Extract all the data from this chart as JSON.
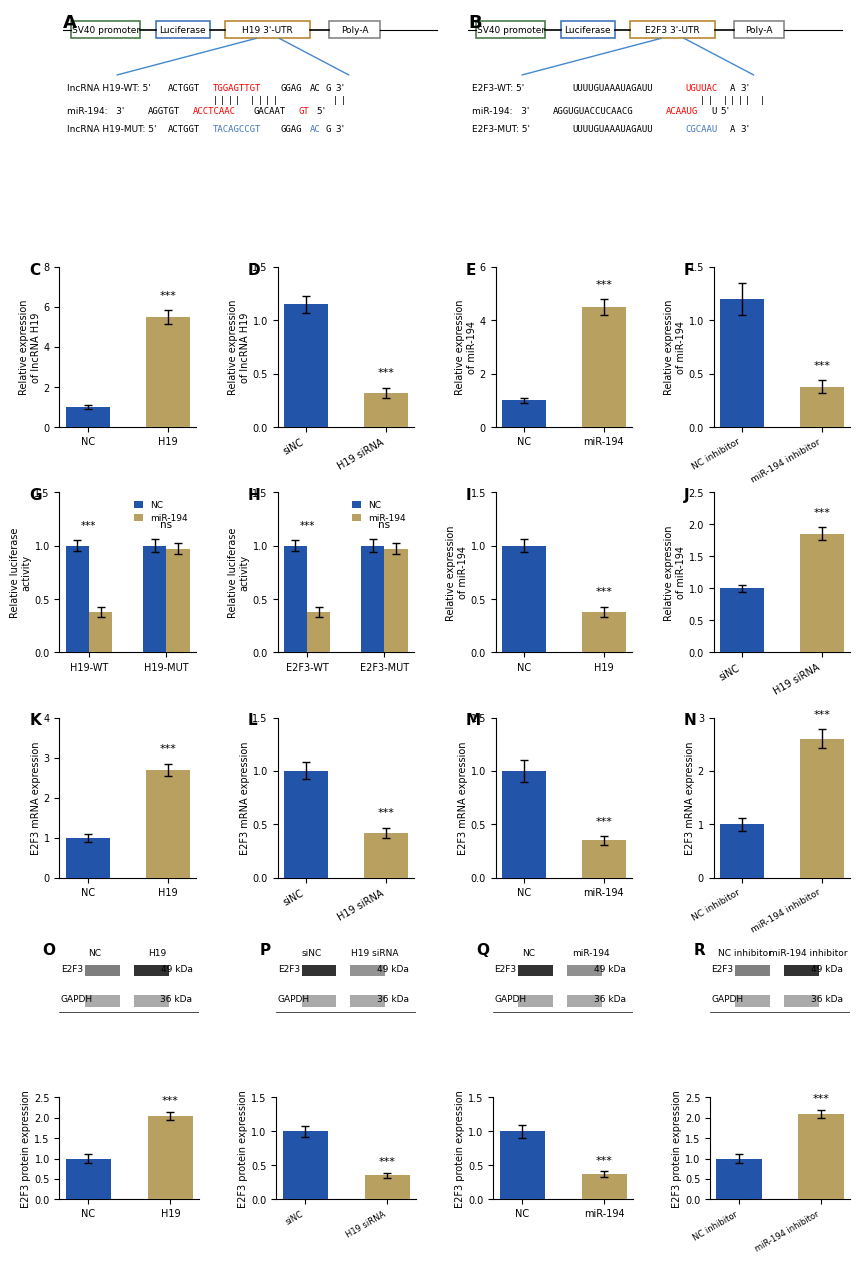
{
  "blue_color": "#2255aa",
  "tan_color": "#b8a060",
  "bar_width": 0.55,
  "panels": {
    "C": {
      "categories": [
        "NC",
        "H19"
      ],
      "values": [
        1.0,
        5.5
      ],
      "errors": [
        0.1,
        0.35
      ],
      "ylabel": "Relative expression\nof lncRNA H19",
      "ylim": [
        0,
        8
      ],
      "yticks": [
        0,
        2,
        4,
        6,
        8
      ],
      "sig": "***",
      "sig_on": 1
    },
    "D": {
      "categories": [
        "siNC",
        "H19 siRNA"
      ],
      "values": [
        1.15,
        0.32
      ],
      "errors": [
        0.08,
        0.05
      ],
      "ylabel": "Relative expression\nof lncRNA H19",
      "ylim": [
        0,
        1.5
      ],
      "yticks": [
        0.0,
        0.5,
        1.0,
        1.5
      ],
      "sig": "***",
      "sig_on": 1
    },
    "E": {
      "categories": [
        "NC",
        "miR-194"
      ],
      "values": [
        1.0,
        4.5
      ],
      "errors": [
        0.1,
        0.3
      ],
      "ylabel": "Relative expression\nof miR-194",
      "ylim": [
        0,
        6
      ],
      "yticks": [
        0,
        2,
        4,
        6
      ],
      "sig": "***",
      "sig_on": 1
    },
    "F": {
      "categories": [
        "NC inhibitor",
        "miR-194 inhibitor"
      ],
      "values": [
        1.2,
        0.38
      ],
      "errors": [
        0.15,
        0.06
      ],
      "ylabel": "Relative expression\nof miR-194",
      "ylim": [
        0,
        1.5
      ],
      "yticks": [
        0.0,
        0.5,
        1.0,
        1.5
      ],
      "sig": "***",
      "sig_on": 1
    },
    "G": {
      "categories": [
        "H19-WT",
        "H19-MUT"
      ],
      "values_nc": [
        1.0,
        1.0
      ],
      "values_mir": [
        0.38,
        0.97
      ],
      "errors_nc": [
        0.05,
        0.06
      ],
      "errors_mir": [
        0.05,
        0.05
      ],
      "ylabel": "Relative luciferase\nactivity",
      "ylim": [
        0,
        1.5
      ],
      "yticks": [
        0.0,
        0.5,
        1.0,
        1.5
      ],
      "sig": [
        "***",
        "ns"
      ]
    },
    "H": {
      "categories": [
        "E2F3-WT",
        "E2F3-MUT"
      ],
      "values_nc": [
        1.0,
        1.0
      ],
      "values_mir": [
        0.38,
        0.97
      ],
      "errors_nc": [
        0.05,
        0.06
      ],
      "errors_mir": [
        0.05,
        0.05
      ],
      "ylabel": "Relative luciferase\nactivity",
      "ylim": [
        0,
        1.5
      ],
      "yticks": [
        0.0,
        0.5,
        1.0,
        1.5
      ],
      "sig": [
        "***",
        "ns"
      ]
    },
    "I": {
      "categories": [
        "NC",
        "H19"
      ],
      "values": [
        1.0,
        0.38
      ],
      "errors": [
        0.06,
        0.05
      ],
      "ylabel": "Relative expression\nof miR-194",
      "ylim": [
        0,
        1.5
      ],
      "yticks": [
        0.0,
        0.5,
        1.0,
        1.5
      ],
      "sig": "***",
      "sig_on": 1
    },
    "J": {
      "categories": [
        "siNC",
        "H19 siRNA"
      ],
      "values": [
        1.0,
        1.85
      ],
      "errors": [
        0.06,
        0.1
      ],
      "ylabel": "Relative expression\nof miR-194",
      "ylim": [
        0,
        2.5
      ],
      "yticks": [
        0.0,
        0.5,
        1.0,
        1.5,
        2.0,
        2.5
      ],
      "sig": "***",
      "sig_on": 1
    },
    "K": {
      "categories": [
        "NC",
        "H19"
      ],
      "values": [
        1.0,
        2.7
      ],
      "errors": [
        0.1,
        0.15
      ],
      "ylabel": "E2F3 mRNA expression",
      "ylim": [
        0,
        4
      ],
      "yticks": [
        0,
        1,
        2,
        3,
        4
      ],
      "sig": "***",
      "sig_on": 1
    },
    "L": {
      "categories": [
        "siNC",
        "H19 siRNA"
      ],
      "values": [
        1.0,
        0.42
      ],
      "errors": [
        0.08,
        0.05
      ],
      "ylabel": "E2F3 mRNA expression",
      "ylim": [
        0,
        1.5
      ],
      "yticks": [
        0.0,
        0.5,
        1.0,
        1.5
      ],
      "sig": "***",
      "sig_on": 1
    },
    "M": {
      "categories": [
        "NC",
        "miR-194"
      ],
      "values": [
        1.0,
        0.35
      ],
      "errors": [
        0.1,
        0.04
      ],
      "ylabel": "E2F3 mRNA expression",
      "ylim": [
        0,
        1.5
      ],
      "yticks": [
        0.0,
        0.5,
        1.0,
        1.5
      ],
      "sig": "***",
      "sig_on": 1
    },
    "N": {
      "categories": [
        "NC inhibitor",
        "miR-194 inhibitor"
      ],
      "values": [
        1.0,
        2.6
      ],
      "errors": [
        0.12,
        0.18
      ],
      "ylabel": "E2F3 mRNA expression",
      "ylim": [
        0,
        3
      ],
      "yticks": [
        0,
        1,
        2,
        3
      ],
      "sig": "***",
      "sig_on": 1
    },
    "O_bar": {
      "categories": [
        "NC",
        "H19"
      ],
      "values": [
        1.0,
        2.05
      ],
      "errors": [
        0.12,
        0.1
      ],
      "ylabel": "E2F3 protein expression",
      "ylim": [
        0,
        2.5
      ],
      "yticks": [
        0.0,
        0.5,
        1.0,
        1.5,
        2.0,
        2.5
      ],
      "sig": "***",
      "sig_on": 1
    },
    "P_bar": {
      "categories": [
        "siNC",
        "H19 siRNA"
      ],
      "values": [
        1.0,
        0.35
      ],
      "errors": [
        0.08,
        0.04
      ],
      "ylabel": "E2F3 protein expression",
      "ylim": [
        0,
        1.5
      ],
      "yticks": [
        0.0,
        0.5,
        1.0,
        1.5
      ],
      "sig": "***",
      "sig_on": 1
    },
    "Q_bar": {
      "categories": [
        "NC",
        "miR-194"
      ],
      "values": [
        1.0,
        0.37
      ],
      "errors": [
        0.1,
        0.04
      ],
      "ylabel": "E2F3 protein expression",
      "ylim": [
        0,
        1.5
      ],
      "yticks": [
        0.0,
        0.5,
        1.0,
        1.5
      ],
      "sig": "***",
      "sig_on": 1
    },
    "R_bar": {
      "categories": [
        "NC inhibitor",
        "miR-194 inhibitor"
      ],
      "values": [
        1.0,
        2.1
      ],
      "errors": [
        0.12,
        0.1
      ],
      "ylabel": "E2F3 protein expression",
      "ylim": [
        0,
        2.5
      ],
      "yticks": [
        0.0,
        0.5,
        1.0,
        1.5,
        2.0,
        2.5
      ],
      "sig": "***",
      "sig_on": 1
    }
  }
}
